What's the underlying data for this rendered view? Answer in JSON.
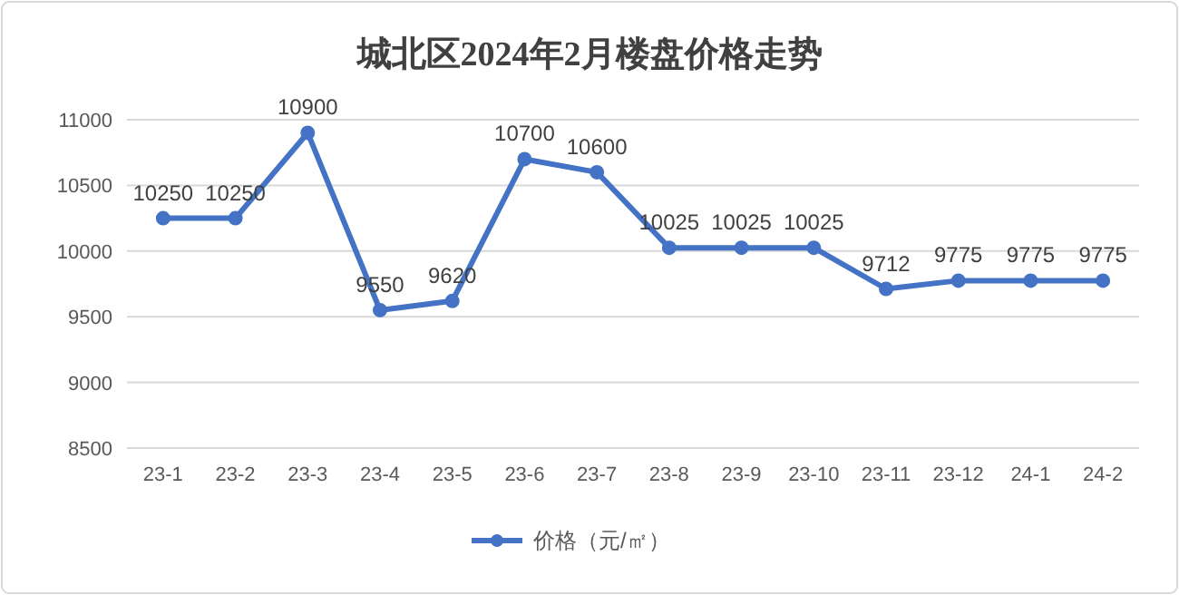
{
  "chart_data": {
    "type": "line",
    "title": "城北区2024年2月楼盘价格走势",
    "categories": [
      "23-1",
      "23-2",
      "23-3",
      "23-4",
      "23-5",
      "23-6",
      "23-7",
      "23-8",
      "23-9",
      "23-10",
      "23-11",
      "23-12",
      "24-1",
      "24-2"
    ],
    "series": [
      {
        "name": "价格（元/㎡）",
        "color": "#4472c4",
        "values": [
          10250,
          10250,
          10900,
          9550,
          9620,
          10700,
          10600,
          10025,
          10025,
          10025,
          9712,
          9775,
          9775,
          9775
        ]
      }
    ],
    "ylim": [
      8500,
      11000
    ],
    "yticks": [
      8500,
      9000,
      9500,
      10000,
      10500,
      11000
    ],
    "grid": "y",
    "legend": "bottom",
    "marker": "circle",
    "data_labels": true
  }
}
